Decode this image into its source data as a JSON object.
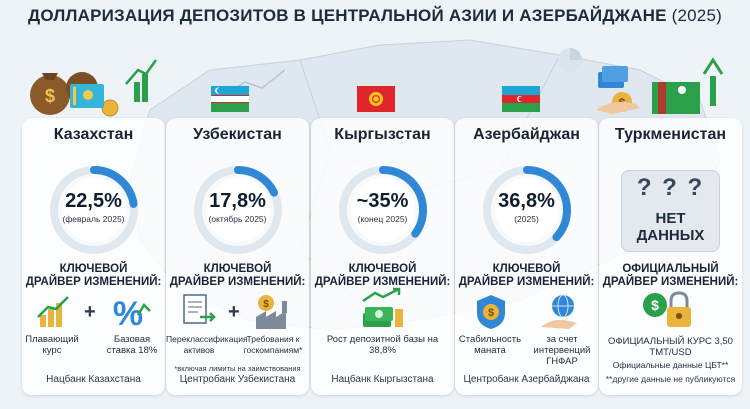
{
  "title": {
    "main": "ДОЛЛАРИЗАЦИЯ ДЕПОЗИТОВ В ЦЕНТРАЛЬНОЙ АЗИИ И АЗЕРБАЙДЖАНЕ",
    "year": "(2025)"
  },
  "colors": {
    "ring_blue": "#2f87d6",
    "ring_track": "#dfe7ef",
    "accent_green": "#2aa04a",
    "background": "#eef3f8"
  },
  "countries": [
    {
      "name": "Казахстан",
      "value": "22,5%",
      "period": "(февраль 2025)",
      "share": 0.225,
      "driver": [
        "КЛЮЧЕВОЙ",
        "ДРАЙВЕР ИЗМЕНЕНИЙ:"
      ],
      "factors": [
        "Плавающий курс",
        "Базовая ставка 18%"
      ],
      "icons": [
        "bar-chart-growth-icon",
        "percent-icon"
      ],
      "source": "Нацбанк Казахстана"
    },
    {
      "name": "Узбекистан",
      "value": "17,8%",
      "period": "(октябрь 2025)",
      "share": 0.178,
      "driver": [
        "КЛЮЧЕВОЙ",
        "ДРАЙВЕР ИЗМЕНЕНИЙ:"
      ],
      "factors": [
        "Переклассификация активов",
        "Требования к госкомпаниям*"
      ],
      "icons": [
        "document-transfer-icon",
        "factory-coin-icon"
      ],
      "note": "*включая лимиты на заимствования",
      "source": "Центробанк Узбекистана"
    },
    {
      "name": "Кыргызстан",
      "value": "~35%",
      "period": "(конец 2025)",
      "share": 0.35,
      "driver": [
        "КЛЮЧЕВОЙ",
        "ДРАЙВЕР ИЗМЕНЕНИЙ:"
      ],
      "factors": [
        "Рост депозитной базы на 38,8%"
      ],
      "icons": [
        "money-stack-growth-icon"
      ],
      "source": "Нацбанк Кыргызстана"
    },
    {
      "name": "Азербайджан",
      "value": "36,8%",
      "period": "(2025)",
      "share": 0.368,
      "driver": [
        "КЛЮЧЕВОЙ",
        "ДРАЙВЕР ИЗМЕНЕНИЙ:"
      ],
      "factors": [
        "Стабильность маната",
        "за счет интервенций ГНФАР"
      ],
      "icons": [
        "shield-dollar-icon",
        "hand-globe-icon"
      ],
      "source": "Центробанк Азербайджана"
    },
    {
      "name": "Туркменистан",
      "value": "НЕТ ДАННЫХ",
      "question": "? ? ?",
      "driver": [
        "ОФИЦИАЛЬНЫЙ",
        "ДРАЙВЕР ИЗМЕНЕНИЙ:"
      ],
      "factors": [
        "ОФИЦИАЛЬНЫЙ КУРС 3,50 TMT/USD",
        "Официальные данные ЦБТ**"
      ],
      "icons": [
        "dollar-lock-icon"
      ],
      "source": "**другие данные не публикуются"
    }
  ]
}
